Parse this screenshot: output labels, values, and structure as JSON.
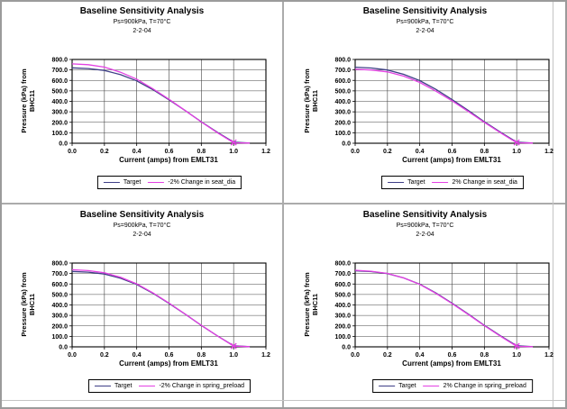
{
  "page": {
    "background": "#ffffff",
    "frame_color": "#9b9b9b",
    "divider_color": "#ababab"
  },
  "chart_data": [
    {
      "type": "line",
      "title": "Baseline Sensitivity Analysis",
      "subtitle": "Ps=900kPa, T=70°C",
      "date": "2-2-04",
      "xlabel": "Current (amps) from EMLT31",
      "ylabel": "Pressure (kPa) from BHC11",
      "ylabel_lines": [
        "Pressure (kPa) from",
        "BHC11"
      ],
      "xlim": [
        0,
        1.2
      ],
      "ylim": [
        0,
        800
      ],
      "x_ticks": [
        0.0,
        0.2,
        0.4,
        0.6,
        0.8,
        1.0,
        1.2
      ],
      "y_ticks": [
        0,
        100,
        200,
        300,
        400,
        500,
        600,
        700,
        800
      ],
      "grid": true,
      "legend_position": "bottom",
      "x": [
        0.0,
        0.1,
        0.2,
        0.3,
        0.4,
        0.5,
        0.6,
        0.7,
        0.8,
        0.9,
        1.0,
        1.1
      ],
      "series": [
        {
          "name": "Target",
          "color": "#3f3f87",
          "values": [
            720,
            713,
            695,
            655,
            595,
            512,
            415,
            312,
            205,
            104,
            10,
            2
          ]
        },
        {
          "name": "-2% Change in seat_dia",
          "color": "#e340e3",
          "values": [
            758,
            750,
            727,
            678,
            612,
            520,
            420,
            312,
            203,
            100,
            4,
            2
          ],
          "marker": {
            "x": 1.0,
            "y": 8
          }
        }
      ]
    },
    {
      "type": "line",
      "title": "Baseline Sensitivity Analysis",
      "subtitle": "Ps=900kPa, T=70°C",
      "date": "2-2-04",
      "xlabel": "Current (amps) from EMLT31",
      "ylabel": "Pressure (kPa) from BHC11",
      "ylabel_lines": [
        "Pressure (kPa) from",
        "BHC11"
      ],
      "xlim": [
        0,
        1.2
      ],
      "ylim": [
        0,
        800
      ],
      "x_ticks": [
        0.0,
        0.2,
        0.4,
        0.6,
        0.8,
        1.0,
        1.2
      ],
      "y_ticks": [
        0,
        100,
        200,
        300,
        400,
        500,
        600,
        700,
        800
      ],
      "grid": true,
      "legend_position": "bottom",
      "x": [
        0.0,
        0.1,
        0.2,
        0.3,
        0.4,
        0.5,
        0.6,
        0.7,
        0.8,
        0.9,
        1.0,
        1.1
      ],
      "series": [
        {
          "name": "Target",
          "color": "#3f3f87",
          "values": [
            726,
            718,
            699,
            658,
            598,
            514,
            417,
            313,
            206,
            105,
            10,
            2
          ]
        },
        {
          "name": "2% Change in seat_dia",
          "color": "#e340e3",
          "values": [
            706,
            699,
            681,
            641,
            581,
            497,
            405,
            304,
            200,
            100,
            4,
            2
          ],
          "marker": {
            "x": 1.0,
            "y": 8
          }
        }
      ]
    },
    {
      "type": "line",
      "title": "Baseline Sensitivity Analysis",
      "subtitle": "Ps=900kPa, T=70°C",
      "date": "2-2-04",
      "xlabel": "Current (amps) from EMLT31",
      "ylabel": "Pressure (kPa) from BHC11",
      "ylabel_lines": [
        "Pressure (kPa) from",
        "BHC11"
      ],
      "xlim": [
        0,
        1.2
      ],
      "ylim": [
        0,
        800
      ],
      "x_ticks": [
        0.0,
        0.2,
        0.4,
        0.6,
        0.8,
        1.0,
        1.2
      ],
      "y_ticks": [
        0,
        100,
        200,
        300,
        400,
        500,
        600,
        700,
        800
      ],
      "grid": true,
      "legend_position": "bottom",
      "x": [
        0.0,
        0.1,
        0.2,
        0.3,
        0.4,
        0.5,
        0.6,
        0.7,
        0.8,
        0.9,
        1.0,
        1.1
      ],
      "series": [
        {
          "name": "Target",
          "color": "#3f3f87",
          "values": [
            720,
            713,
            695,
            655,
            595,
            512,
            415,
            312,
            205,
            104,
            10,
            2
          ]
        },
        {
          "name": "-2% Change in spring_preload",
          "color": "#e340e3",
          "values": [
            736,
            728,
            707,
            664,
            601,
            516,
            418,
            313,
            206,
            103,
            7,
            2
          ],
          "marker": {
            "x": 1.0,
            "y": 8
          }
        }
      ]
    },
    {
      "type": "line",
      "title": "Baseline Sensitivity Analysis",
      "subtitle": "Ps=900kPa, T=70°C",
      "date": "2-2-04",
      "xlabel": "Current (amps) from EMLT31",
      "ylabel": "Pressure (kPa) from BHC11",
      "ylabel_lines": [
        "Pressure (kPa) from",
        "BHC11"
      ],
      "xlim": [
        0,
        1.2
      ],
      "ylim": [
        0,
        800
      ],
      "x_ticks": [
        0.0,
        0.2,
        0.4,
        0.6,
        0.8,
        1.0,
        1.2
      ],
      "y_ticks": [
        0,
        100,
        200,
        300,
        400,
        500,
        600,
        700,
        800
      ],
      "grid": true,
      "legend_position": "bottom",
      "x": [
        0.0,
        0.1,
        0.2,
        0.3,
        0.4,
        0.5,
        0.6,
        0.7,
        0.8,
        0.9,
        1.0,
        1.1
      ],
      "series": [
        {
          "name": "Target",
          "color": "#3f3f87",
          "values": [
            726,
            718,
            699,
            658,
            598,
            514,
            417,
            313,
            206,
            105,
            10,
            2
          ]
        },
        {
          "name": "2% Change in spring_preload",
          "color": "#e340e3",
          "values": [
            731,
            722,
            701,
            658,
            596,
            510,
            413,
            309,
            202,
            101,
            4,
            2
          ],
          "marker": {
            "x": 1.0,
            "y": 8
          }
        }
      ]
    }
  ]
}
